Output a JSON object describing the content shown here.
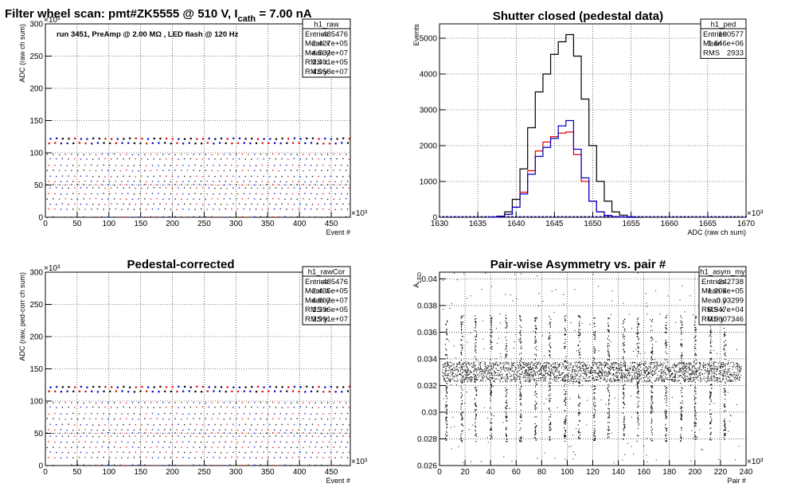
{
  "chart_data": [
    {
      "type": "scatter",
      "title": "Filter wheel scan: pmt#ZK5555 @   510 V, I",
      "title_sub": "cath",
      "title_tail": " = 7.00 nA",
      "annotation": "run 3451, PreAmp @ 2.00 MΩ , LED flash @  120 Hz",
      "xlabel": "Event #",
      "ylabel": "ADC (raw ch sum)",
      "xexp": "×10³",
      "yexp": "×10³",
      "xlim": [
        0,
        480
      ],
      "ylim": [
        0,
        300
      ],
      "xticks": [
        0,
        50,
        100,
        150,
        200,
        250,
        300,
        350,
        400,
        450
      ],
      "yticks": [
        0,
        50,
        100,
        150,
        200,
        250,
        300
      ],
      "levels": [
        0,
        12,
        20,
        28,
        36,
        45,
        50,
        55,
        63,
        72,
        80,
        90,
        97,
        115,
        122
      ],
      "stats": {
        "name": "h1_raw",
        "rows": [
          [
            "Entries",
            "485476"
          ],
          [
            "Mean x",
            "2.427e+05"
          ],
          [
            "Mean y",
            "4.533e+07"
          ],
          [
            "RMS x",
            "1.401e+05"
          ],
          [
            "RMS y",
            "4.058e+07"
          ]
        ]
      }
    },
    {
      "type": "line",
      "title": "Shutter closed (pedestal data)",
      "xlabel": "ADC (raw ch sum)",
      "ylabel": "Events",
      "xexp": "×10³",
      "xlim": [
        1630,
        1670
      ],
      "ylim": [
        0,
        5400
      ],
      "xticks": [
        1630,
        1635,
        1640,
        1645,
        1650,
        1655,
        1660,
        1665,
        1670
      ],
      "yticks": [
        0,
        1000,
        2000,
        3000,
        4000,
        5000
      ],
      "series": [
        {
          "color": "#000000",
          "x": [
            1637,
            1638,
            1639,
            1640,
            1641,
            1642,
            1643,
            1644,
            1645,
            1646,
            1647,
            1648,
            1649,
            1650,
            1651,
            1652,
            1653,
            1654,
            1655,
            1656
          ],
          "y": [
            5,
            30,
            150,
            500,
            1350,
            2500,
            3500,
            4000,
            4550,
            4900,
            5100,
            4500,
            3300,
            2000,
            1000,
            450,
            150,
            60,
            15,
            0
          ]
        },
        {
          "color": "#dd0000",
          "x": [
            1637,
            1638,
            1639,
            1640,
            1641,
            1642,
            1643,
            1644,
            1645,
            1646,
            1647,
            1648,
            1649,
            1650,
            1651,
            1652,
            1653,
            1654,
            1655
          ],
          "y": [
            2,
            15,
            80,
            280,
            700,
            1300,
            1850,
            2100,
            2250,
            2350,
            2380,
            1750,
            1000,
            450,
            150,
            50,
            15,
            5,
            0
          ]
        },
        {
          "color": "#0000cc",
          "x": [
            1637,
            1638,
            1639,
            1640,
            1641,
            1642,
            1643,
            1644,
            1645,
            1646,
            1647,
            1648,
            1649,
            1650,
            1651,
            1652,
            1653,
            1654,
            1655
          ],
          "y": [
            2,
            15,
            80,
            280,
            650,
            1200,
            1700,
            1950,
            2200,
            2550,
            2700,
            1900,
            1100,
            450,
            150,
            50,
            15,
            5,
            0
          ]
        }
      ],
      "stats": {
        "name": "h1_ped",
        "rows": [
          [
            "Entries",
            "100577"
          ],
          [
            "Mean",
            "1.646e+06"
          ],
          [
            "RMS",
            "2933"
          ]
        ]
      }
    },
    {
      "type": "scatter",
      "title": "Pedestal-corrected",
      "xlabel": "Event #",
      "ylabel": "ADC (raw, ped-corr ch sum)",
      "xexp": "×10³",
      "yexp": "×10³",
      "xlim": [
        0,
        480
      ],
      "ylim": [
        0,
        300
      ],
      "xticks": [
        0,
        50,
        100,
        150,
        200,
        250,
        300,
        350,
        400,
        450
      ],
      "yticks": [
        0,
        50,
        100,
        150,
        200,
        250,
        300
      ],
      "levels": [
        0,
        12,
        20,
        28,
        36,
        45,
        50,
        55,
        63,
        72,
        80,
        90,
        97,
        115,
        122
      ],
      "stats": {
        "name": "h1_rawCor",
        "rows": [
          [
            "Entries",
            "485476"
          ],
          [
            "Mean x",
            "2.435e+05"
          ],
          [
            "Mean y",
            "4.863e+07"
          ],
          [
            "RMS x",
            "1.396e+05"
          ],
          [
            "RMS y",
            "3.991e+07"
          ]
        ]
      }
    },
    {
      "type": "scatter",
      "title": "Pair-wise Asymmetry vs. pair #",
      "xlabel": "Pair #",
      "ylabel": "A",
      "ylabel_sub": "LED",
      "xexp": "×10³",
      "xlim": [
        0,
        240
      ],
      "ylim": [
        0.026,
        0.0405
      ],
      "xticks": [
        0,
        20,
        40,
        60,
        80,
        100,
        120,
        140,
        160,
        180,
        200,
        220,
        240
      ],
      "yticks": [
        0.026,
        0.028,
        0.03,
        0.032,
        0.034,
        0.036,
        0.038,
        0.04
      ],
      "ytick_labels": [
        "0.026",
        "0.028",
        "0.03",
        "0.032",
        "0.034",
        "0.036",
        "0.038",
        "0.04"
      ],
      "band": [
        0.0323,
        0.0338
      ],
      "spike_x": [
        5,
        17,
        28,
        40,
        52,
        63,
        75,
        86,
        98,
        109,
        121,
        132,
        144,
        155,
        166,
        177,
        189,
        200,
        212,
        223
      ],
      "stats": {
        "name": "h1_asym_my",
        "rows": [
          [
            "Entries",
            "242738"
          ],
          [
            "Mean x",
            "1.208e+05"
          ],
          [
            "Mean y",
            "0.03299"
          ],
          [
            "RMS x",
            "6.947e+04"
          ],
          [
            "RMS y",
            "0.0007346"
          ]
        ]
      }
    }
  ]
}
